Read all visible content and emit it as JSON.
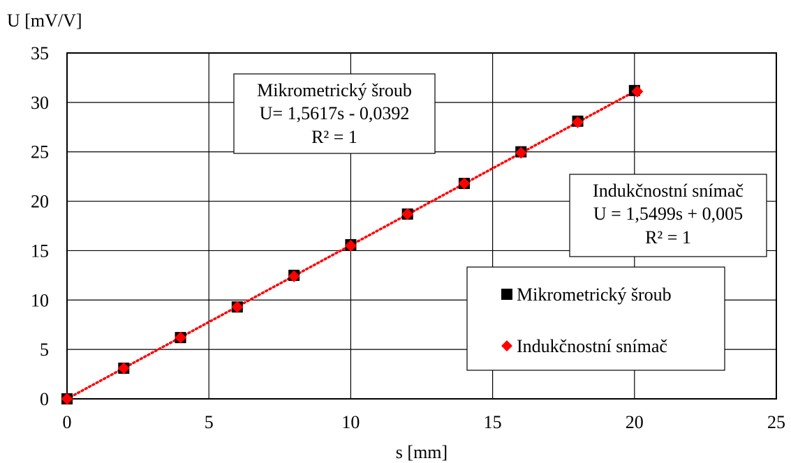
{
  "chart_data": {
    "type": "scatter",
    "xlabel": "s [mm]",
    "ylabel": "U [mV/V]",
    "xlim": [
      0,
      25
    ],
    "ylim": [
      0,
      35
    ],
    "xticks": [
      "0",
      "5",
      "10",
      "15",
      "20",
      "25"
    ],
    "yticks": [
      "0",
      "5",
      "10",
      "15",
      "20",
      "25",
      "30",
      "35"
    ],
    "grid": true,
    "legend_position": "bottom-right",
    "series": [
      {
        "name": "Mikrometrický šroub",
        "color": "#000000",
        "marker": "square",
        "x": [
          0,
          2,
          4,
          6,
          8,
          10,
          12,
          14,
          16,
          18,
          20
        ],
        "y": [
          0,
          3.1,
          6.2,
          9.3,
          12.5,
          15.6,
          18.7,
          21.8,
          25.0,
          28.1,
          31.2
        ]
      },
      {
        "name": "Indukčnostní snímač",
        "color": "#ff0000",
        "marker": "diamond",
        "x": [
          0,
          2,
          4,
          6,
          8,
          10,
          12,
          14,
          16,
          18,
          20.1
        ],
        "y": [
          0,
          3.1,
          6.2,
          9.3,
          12.4,
          15.5,
          18.7,
          21.8,
          24.9,
          28.0,
          31.1
        ]
      }
    ],
    "trendline": {
      "style": "dotted",
      "color": "#ff0000",
      "x": [
        0,
        20
      ],
      "y": [
        0,
        31.1
      ]
    },
    "annotations": [
      {
        "lines": [
          "Mikrometrický šroub",
          "U= 1,5617s - 0,0392",
          "R² = 1"
        ]
      },
      {
        "lines": [
          "Indukčnostní snímač",
          "U = 1,5499s + 0,005",
          "R² = 1"
        ]
      }
    ]
  }
}
